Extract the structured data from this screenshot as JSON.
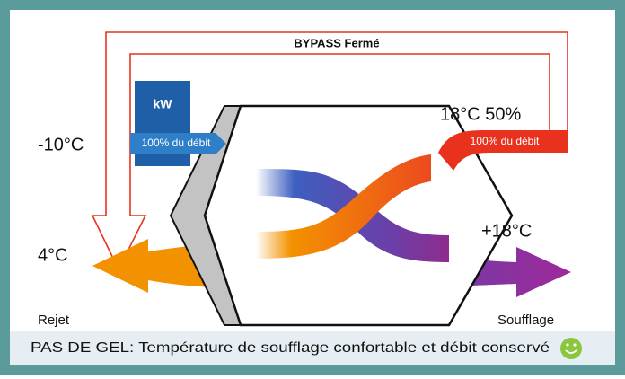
{
  "bypass_label": "BYPASS Fermé",
  "heater_label": "kW",
  "extract_flow_label": "100% du débit",
  "supply_flow_label": "100% du débit",
  "outdoor_temp": "-10°C",
  "indoor_conditions": "18°C 50%",
  "supply_temp": "+18°C",
  "exhaust_temp": "4°C",
  "exhaust_label": "Rejet",
  "supply_label": "Soufflage",
  "caption": "PAS DE GEL: Température de soufflage confortable et débit conservé"
}
